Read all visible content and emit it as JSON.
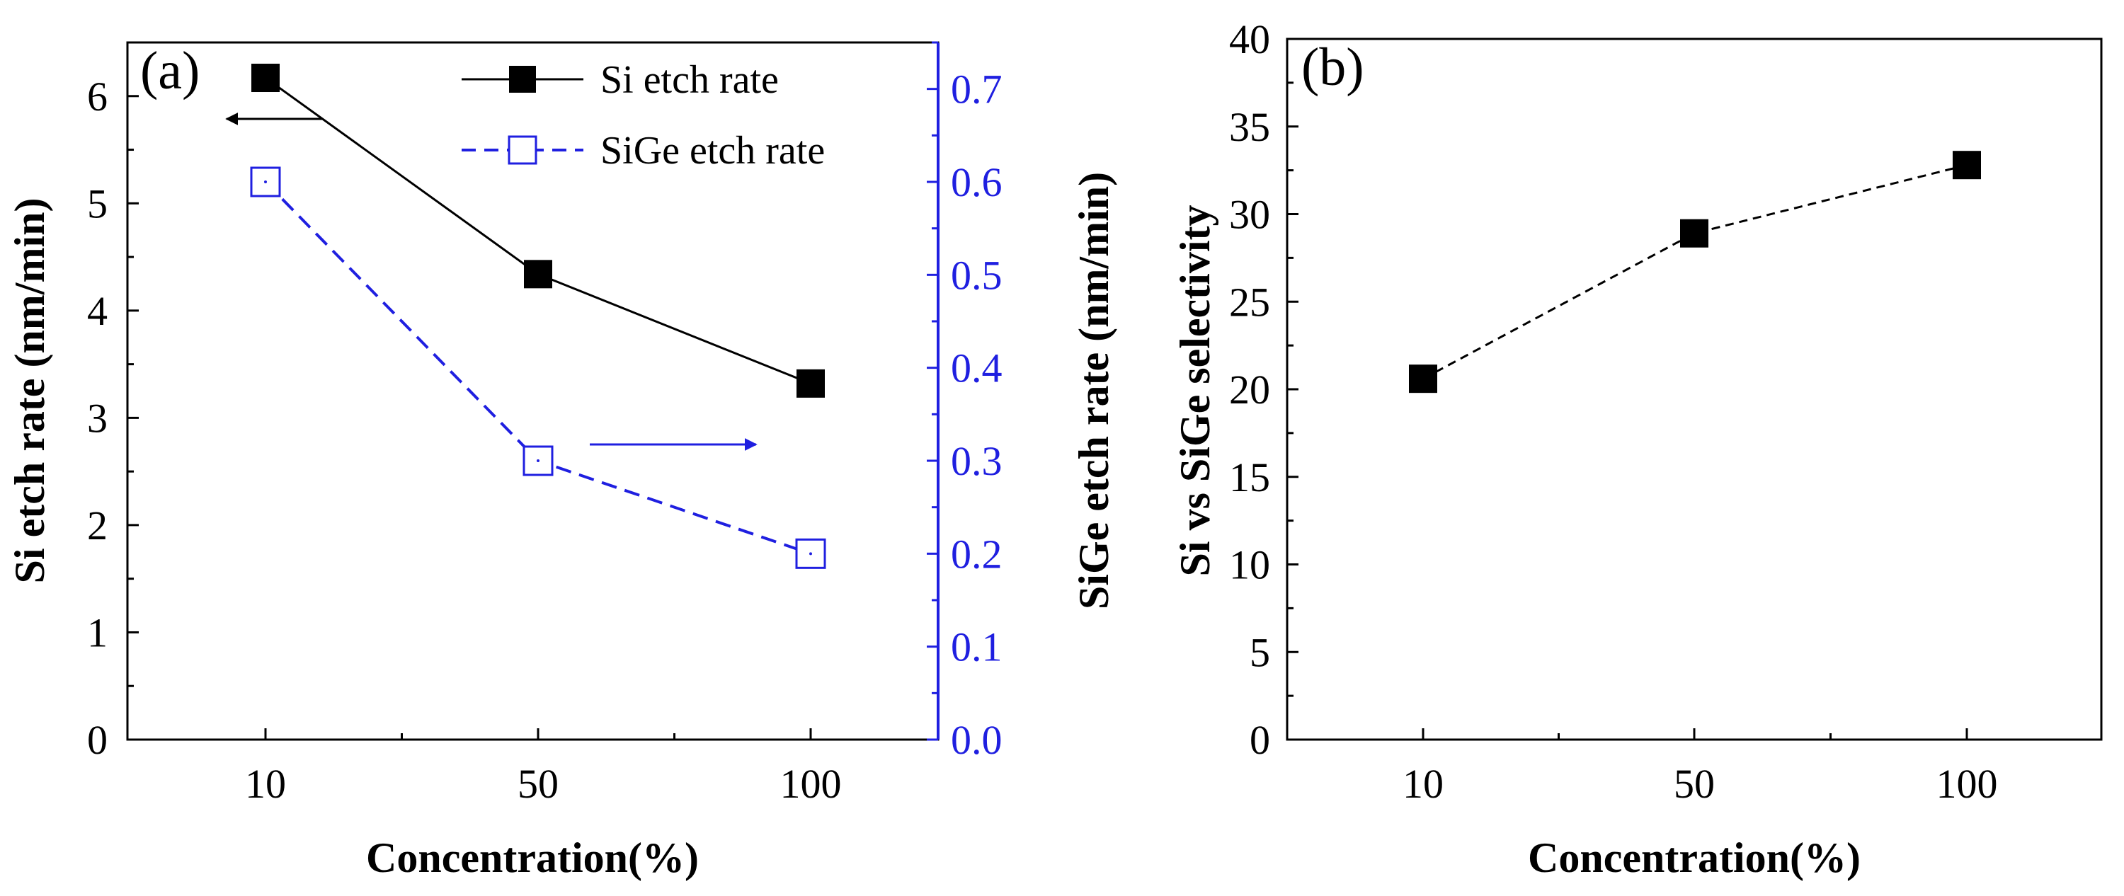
{
  "colors": {
    "black": "#000000",
    "blue": "#1f1fe0",
    "background": "#ffffff"
  },
  "chart_data": [
    {
      "type": "line",
      "panel_label": "(a)",
      "xlabel": "Concentration(%)",
      "ylabel": "Si etch rate (nm/min)",
      "y2label": "SiGe etch rate (nm/min)",
      "categories": [
        "10",
        "50",
        "100"
      ],
      "ylim": [
        0,
        6.5
      ],
      "yticks": [
        "0",
        "1",
        "2",
        "3",
        "4",
        "5",
        "6"
      ],
      "y2lim": [
        0,
        0.75
      ],
      "y2ticks": [
        "0.0",
        "0.1",
        "0.2",
        "0.3",
        "0.4",
        "0.5",
        "0.6",
        "0.7"
      ],
      "series": [
        {
          "name": "Si etch rate",
          "axis": "left",
          "marker": "filled-square",
          "line": "solid",
          "color": "#000000",
          "values": [
            6.17,
            4.34,
            3.32
          ]
        },
        {
          "name": "SiGe etch rate",
          "axis": "right",
          "marker": "open-square",
          "line": "dashed",
          "color": "#1f1fe0",
          "values": [
            0.6,
            0.3,
            0.2
          ]
        }
      ],
      "legend": "top-center",
      "annotations": [
        "arrow pointing left to Si axis",
        "arrow pointing right to SiGe axis"
      ]
    },
    {
      "type": "line",
      "panel_label": "(b)",
      "xlabel": "Concentration(%)",
      "ylabel": "Si vs SiGe selectivity",
      "categories": [
        "10",
        "50",
        "100"
      ],
      "ylim": [
        0,
        40
      ],
      "yticks": [
        "0",
        "5",
        "10",
        "15",
        "20",
        "25",
        "30",
        "35",
        "40"
      ],
      "series": [
        {
          "name": "Si vs SiGe selectivity",
          "axis": "left",
          "marker": "filled-square",
          "line": "dashed",
          "color": "#000000",
          "values": [
            20.6,
            28.9,
            32.8
          ]
        }
      ]
    }
  ]
}
